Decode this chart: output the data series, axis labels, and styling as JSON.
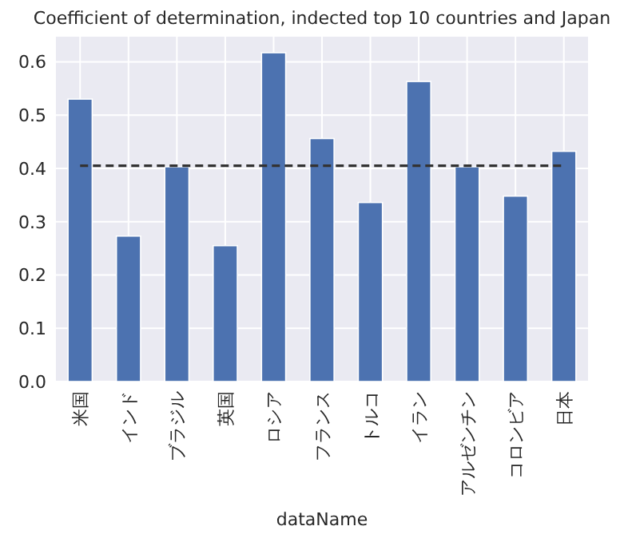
{
  "chart_data": {
    "type": "bar",
    "title": "Coefficient of determination, indected top 10 countries and Japan",
    "xlabel": "dataName",
    "categories": [
      "米国",
      "インド",
      "ブラジル",
      "英国",
      "ロシア",
      "フランス",
      "トルコ",
      "イラン",
      "アルゼンチン",
      "コロンビア",
      "日本"
    ],
    "series": [
      {
        "color": "#4c72b0",
        "values": [
          0.53,
          0.273,
          0.403,
          0.255,
          0.617,
          0.456,
          0.336,
          0.563,
          0.403,
          0.348,
          0.432
        ]
      },
      {
        "type": "line",
        "color": "#333333",
        "line_style": "dashed",
        "values": [
          0.405,
          0.405,
          0.405,
          0.405,
          0.405,
          0.405,
          0.405,
          0.405,
          0.405,
          0.405,
          0.405
        ]
      }
    ],
    "ylim": [
      0,
      0.647
    ],
    "yticks": [
      {
        "value": 0,
        "label": "0.0"
      },
      0.1,
      0.2,
      0.3,
      0.4,
      0.5,
      0.6
    ],
    "grid": true
  }
}
